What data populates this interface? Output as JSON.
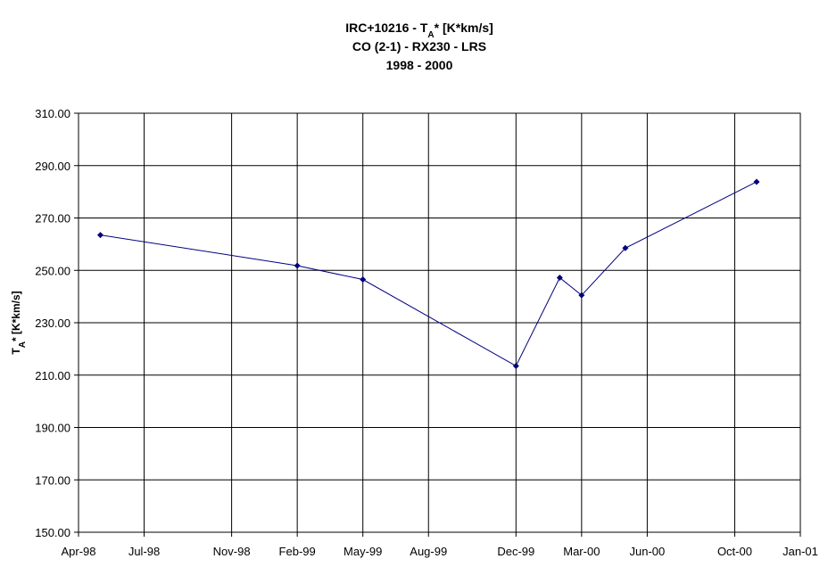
{
  "chart_data": {
    "type": "line",
    "title": [
      [
        "IRC+10216 - T",
        {
          "sub": "A"
        },
        "* [K*km/s]"
      ],
      [
        "CO (2-1) - RX230 - LRS"
      ],
      [
        "1998 - 2000"
      ]
    ],
    "y_label": [
      "T",
      {
        "sub": "A"
      },
      "* [K*km/s]"
    ],
    "x": [
      "1998-05",
      "1999-02",
      "1999-05",
      "1999-12",
      "2000-02",
      "2000-03",
      "2000-05",
      "2000-11"
    ],
    "series": [
      {
        "name": "IRC+10216",
        "color": "#000080",
        "values": [
          263.5,
          251.8,
          246.5,
          213.5,
          247.2,
          240.5,
          258.5,
          283.8
        ]
      }
    ],
    "xlim": [
      "1998-04",
      "2001-01"
    ],
    "xticks": [
      {
        "value": "1998-04",
        "label": "Apr-98"
      },
      {
        "value": "1998-07",
        "label": "Jul-98"
      },
      {
        "value": "1998-11",
        "label": "Nov-98"
      },
      {
        "value": "1999-02",
        "label": "Feb-99"
      },
      {
        "value": "1999-05",
        "label": "May-99"
      },
      {
        "value": "1999-08",
        "label": "Aug-99"
      },
      {
        "value": "1999-12",
        "label": "Dec-99"
      },
      {
        "value": "2000-03",
        "label": "Mar-00"
      },
      {
        "value": "2000-06",
        "label": "Jun-00"
      },
      {
        "value": "2000-10",
        "label": "Oct-00"
      },
      {
        "value": "2001-01",
        "label": "Jan-01"
      }
    ],
    "ylim": [
      150,
      310
    ],
    "yticks": [
      {
        "value": 150,
        "label": "150.00"
      },
      {
        "value": 170,
        "label": "170.00"
      },
      {
        "value": 190,
        "label": "190.00"
      },
      {
        "value": 210,
        "label": "210.00"
      },
      {
        "value": 230,
        "label": "230.00"
      },
      {
        "value": 250,
        "label": "250.00"
      },
      {
        "value": 270,
        "label": "270.00"
      },
      {
        "value": 290,
        "label": "290.00"
      },
      {
        "value": 310,
        "label": "310.00"
      }
    ],
    "grid": true
  }
}
